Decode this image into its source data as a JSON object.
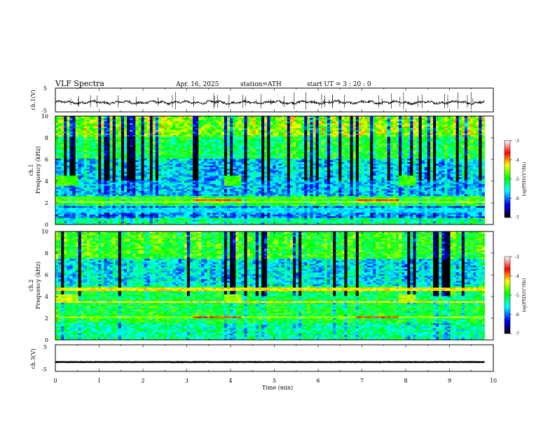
{
  "header": {
    "title": "VLF  Spectra",
    "date": "Apr. 16, 2025",
    "station": "station=ATH",
    "start": "start  UT  =   3  : 20 : 0"
  },
  "colors": {
    "waveform": "#000000",
    "colormap": [
      "#000000",
      "#0000ff",
      "#00ffff",
      "#00ff00",
      "#ffff00",
      "#ff0000",
      "#ffffff"
    ]
  },
  "chart_data": [
    {
      "id": "ch1_waveform",
      "type": "line",
      "ylabel": "ch.1(V)",
      "ylim": [
        -5,
        5
      ],
      "yticks": [
        "5",
        "-5"
      ],
      "mean_level": -1.0,
      "x_range": [
        0,
        9.8
      ]
    },
    {
      "id": "ch1_spectrogram",
      "type": "heatmap",
      "ylabel_top": "ch.1",
      "ylabel": "Frequency  (kHz)",
      "ylim": [
        0,
        10
      ],
      "yticks": [
        "0",
        "2",
        "4",
        "6",
        "8",
        "10"
      ],
      "x_range": [
        0,
        9.8
      ],
      "colorbar": {
        "label": "log(PSD)(V²/Hz)",
        "ticks": [
          "-3",
          "-4",
          "-5",
          "-6",
          "-7"
        ],
        "range": [
          -7,
          -3
        ]
      },
      "features": [
        {
          "name": "strong band",
          "f_khz": [
            1.0,
            1.5
          ],
          "level": -5.7
        },
        {
          "name": "line",
          "f_khz": 2.0,
          "level": -4.5
        },
        {
          "name": "line",
          "f_khz": 2.3,
          "level": -4.7
        },
        {
          "name": "burst",
          "t_min": [
            0.0,
            0.5
          ],
          "f_khz": [
            3.5,
            4.5
          ],
          "level": -4.8
        },
        {
          "name": "burst",
          "t_min": [
            3.8,
            4.2
          ],
          "f_khz": [
            3.5,
            4.5
          ],
          "level": -4.8
        },
        {
          "name": "burst",
          "t_min": [
            7.8,
            8.2
          ],
          "f_khz": [
            3.5,
            4.5
          ],
          "level": -4.8
        },
        {
          "name": "line",
          "t_min": [
            3.1,
            4.2
          ],
          "f_khz": 2.2,
          "level": -3.8
        },
        {
          "name": "line",
          "t_min": [
            6.8,
            7.8
          ],
          "f_khz": 2.2,
          "level": -3.8
        }
      ]
    },
    {
      "id": "ch2_spectrogram",
      "type": "heatmap",
      "ylabel_top": "ch.2",
      "ylabel": "Frequency  (kHz)",
      "ylim": [
        0,
        10
      ],
      "yticks": [
        "0",
        "2",
        "4",
        "6",
        "8",
        "10"
      ],
      "x_range": [
        0,
        9.8
      ],
      "colorbar": {
        "label": "log(PSD)(V²/Hz)",
        "ticks": [
          "-3",
          "-4",
          "-5",
          "-6",
          "-7"
        ],
        "range": [
          -7,
          -3
        ]
      },
      "features": [
        {
          "name": "line",
          "f_khz": 4.6,
          "level": -4.2
        },
        {
          "name": "line",
          "f_khz": 3.5,
          "level": -4.2
        },
        {
          "name": "line",
          "f_khz": 2.0,
          "level": -4.5
        },
        {
          "name": "burst",
          "t_min": [
            0.0,
            0.5
          ],
          "f_khz": [
            3.5,
            4.2
          ],
          "level": -4.5
        },
        {
          "name": "burst",
          "t_min": [
            3.8,
            4.2
          ],
          "f_khz": [
            3.5,
            4.2
          ],
          "level": -4.5
        },
        {
          "name": "burst",
          "t_min": [
            7.8,
            8.2
          ],
          "f_khz": [
            3.5,
            4.2
          ],
          "level": -4.5
        },
        {
          "name": "line",
          "t_min": [
            3.1,
            4.2
          ],
          "f_khz": 2.0,
          "level": -3.8
        },
        {
          "name": "line",
          "t_min": [
            6.8,
            7.8
          ],
          "f_khz": 2.0,
          "level": -3.8
        }
      ]
    },
    {
      "id": "ch3_waveform",
      "type": "line",
      "ylabel": "ch.3(V)",
      "ylim": [
        -5,
        5
      ],
      "yticks": [
        "5",
        "-5"
      ],
      "mean_level": -1.5,
      "x_range": [
        0,
        9.8
      ]
    }
  ],
  "xaxis": {
    "label": "Time  (min)",
    "ticks": [
      "0",
      "1",
      "2",
      "3",
      "4",
      "5",
      "6",
      "7",
      "8",
      "9",
      "10"
    ],
    "range": [
      0,
      10
    ]
  }
}
